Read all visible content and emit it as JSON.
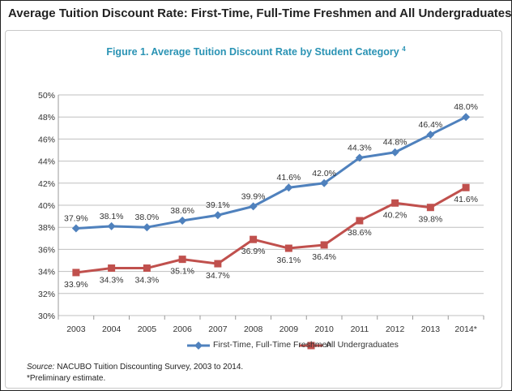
{
  "heading": "Average Tuition Discount Rate: First-Time, Full-Time Freshmen and All Undergraduates",
  "figure": {
    "title": "Figure 1. Average Tuition Discount Rate by Student Category",
    "title_superscript": "4"
  },
  "source": {
    "prefix": "Source:",
    "text": " NACUBO Tuition Discounting Survey, 2003 to 2014."
  },
  "footnote": "*Preliminary estimate.",
  "colors": {
    "series_1": "#4f81bd",
    "series_2": "#c0504d",
    "title": "#2a93b4"
  },
  "chart_data": {
    "type": "line",
    "title": "Figure 1. Average Tuition Discount Rate by Student Category",
    "categories": [
      "2003",
      "2004",
      "2005",
      "2006",
      "2007",
      "2008",
      "2009",
      "2010",
      "2011",
      "2012",
      "2013",
      "2014*"
    ],
    "ylim": [
      30,
      50
    ],
    "yticks": [
      "30%",
      "32%",
      "34%",
      "36%",
      "38%",
      "40%",
      "42%",
      "44%",
      "46%",
      "48%",
      "50%"
    ],
    "grid": true,
    "legend_position": "bottom",
    "series": [
      {
        "name": "First-Time, Full-Time Freshmen",
        "marker": "diamond",
        "values": [
          37.9,
          38.1,
          38.0,
          38.6,
          39.1,
          39.9,
          41.6,
          42.0,
          44.3,
          44.8,
          46.4,
          48.0
        ],
        "labels": [
          "37.9%",
          "38.1%",
          "38.0%",
          "38.6%",
          "39.1%",
          "39.9%",
          "41.6%",
          "42.0%",
          "44.3%",
          "44.8%",
          "46.4%",
          "48.0%"
        ]
      },
      {
        "name": "All Undergraduates",
        "marker": "square",
        "values": [
          33.9,
          34.3,
          34.3,
          35.1,
          34.7,
          36.9,
          36.1,
          36.4,
          38.6,
          40.2,
          39.8,
          41.6
        ],
        "labels": [
          "33.9%",
          "34.3%",
          "34.3%",
          "35.1%",
          "34.7%",
          "36.9%",
          "36.1%",
          "36.4%",
          "38.6%",
          "40.2%",
          "39.8%",
          "41.6%"
        ]
      }
    ]
  }
}
